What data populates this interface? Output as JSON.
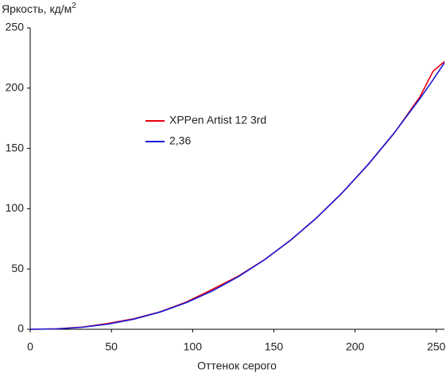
{
  "chart_data": {
    "type": "line",
    "y_label": "Яркость, кд/м",
    "y_label_sup": "2",
    "x_label": "Оттенок серого",
    "x": [
      0,
      16,
      32,
      48,
      64,
      80,
      96,
      112,
      128,
      144,
      160,
      176,
      192,
      208,
      224,
      240,
      248,
      255
    ],
    "series": [
      {
        "name": "XPPen Artist 12 3rd",
        "color": "#e8000b",
        "values": [
          0,
          0.4,
          1.8,
          4.8,
          8.8,
          14.5,
          22.5,
          33,
          44,
          57.5,
          73.5,
          92,
          113,
          136.5,
          162.5,
          193,
          214,
          222
        ]
      },
      {
        "name": "2,36",
        "color": "#1a1adb",
        "values": [
          0,
          0.32,
          1.65,
          4.29,
          8.47,
          14.3,
          22,
          31.7,
          43.5,
          57.4,
          73.6,
          92.1,
          113.1,
          136.7,
          162.7,
          191.5,
          206.9,
          221
        ]
      }
    ],
    "xlim": [
      0,
      255
    ],
    "xticks": [
      0,
      50,
      100,
      150,
      200,
      250
    ],
    "ylim": [
      0,
      250
    ],
    "yticks": [
      0,
      50,
      100,
      150,
      200,
      250
    ],
    "grid": false
  }
}
